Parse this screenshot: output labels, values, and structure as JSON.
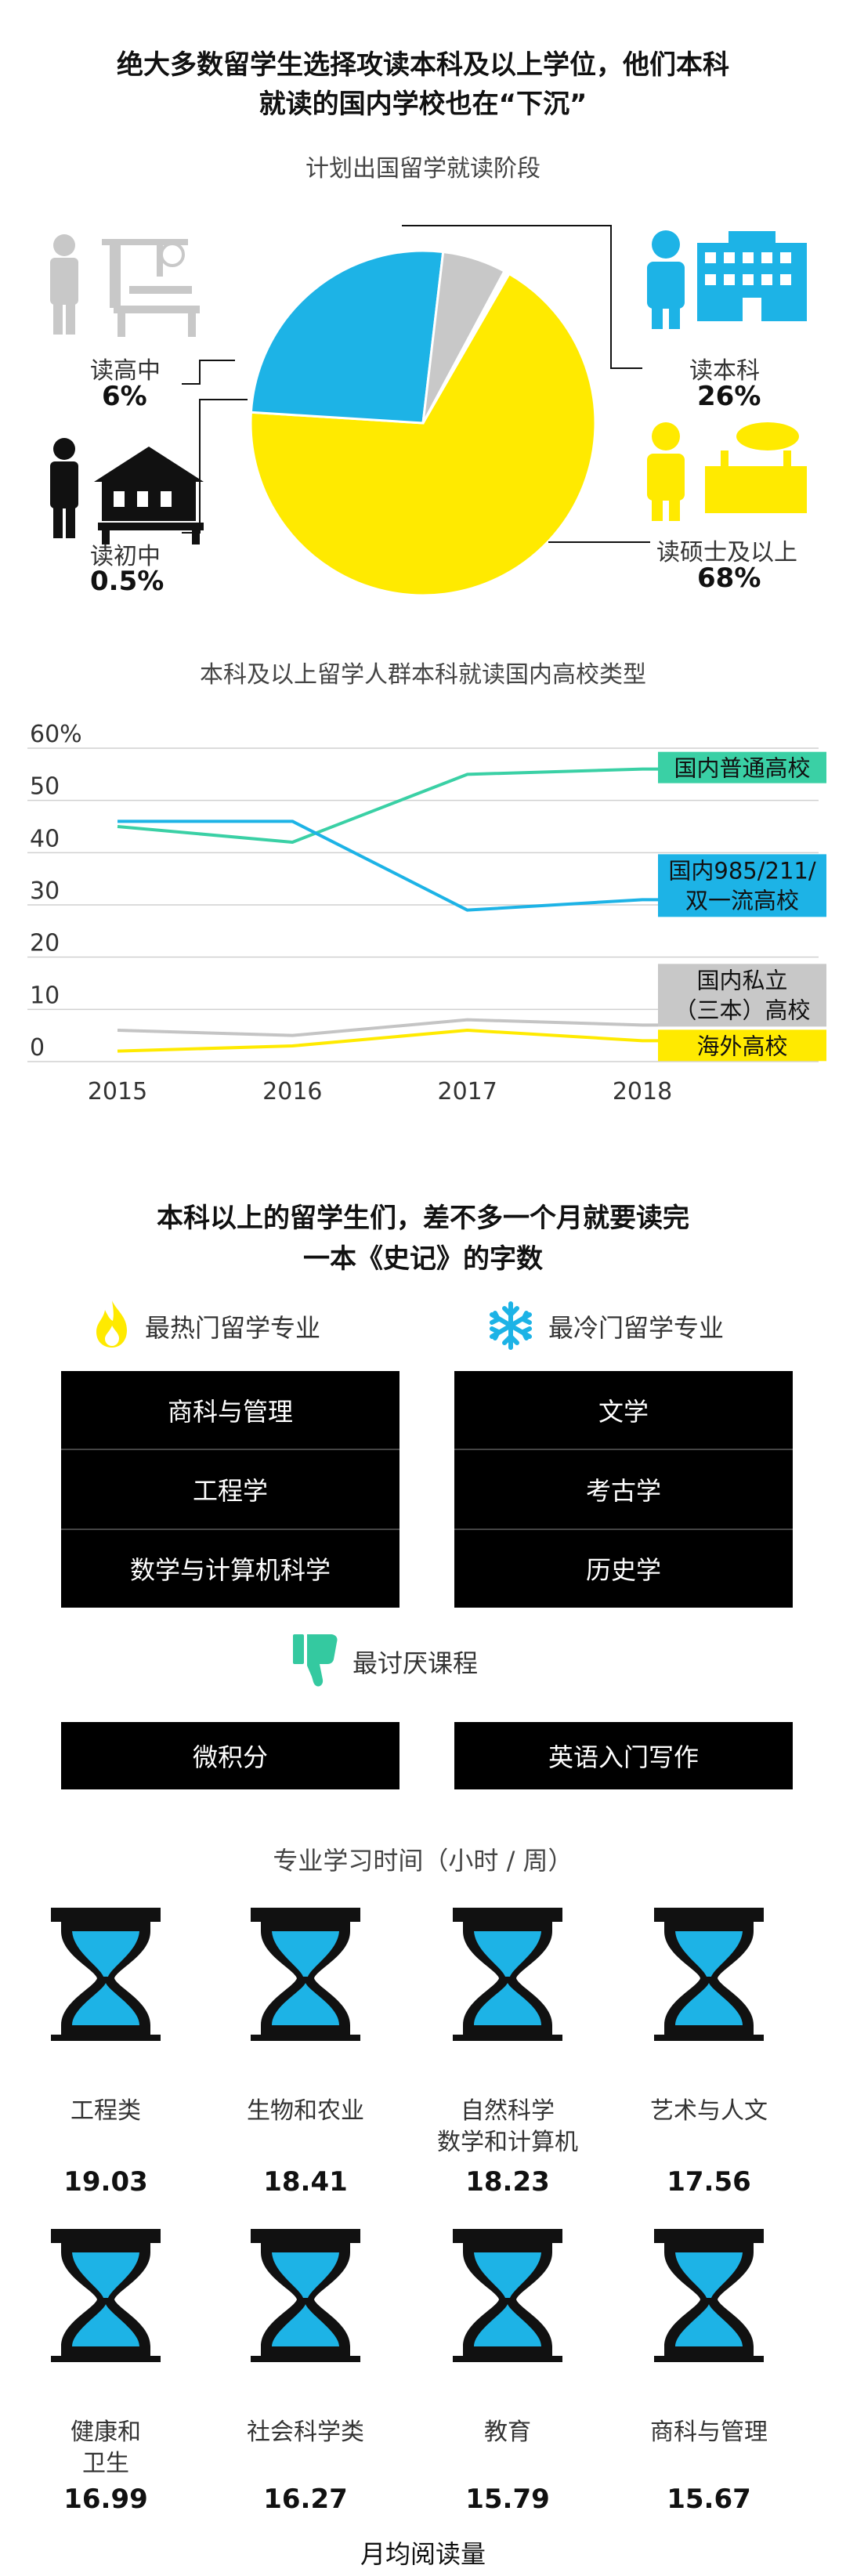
{
  "headline1": {
    "line1": "绝大多数留学生选择攻读本科及以上学位，他们本科",
    "line2": "就读的国内学校也在“下沉”"
  },
  "pie_title": "计划出国留学就读阶段",
  "pie_labels": [
    {
      "label": "读高中",
      "pct": "6%"
    },
    {
      "label": "读初中",
      "pct": "0.5%"
    },
    {
      "label": "读本科",
      "pct": "26%"
    },
    {
      "label": "读硕士及以上",
      "pct": "68%"
    }
  ],
  "line_title": "本科及以上留学人群本科就读国内高校类型",
  "headline2": {
    "line1": "本科以上的留学生们，差不多一个月就要读完",
    "line2": "一本《史记》的字数"
  },
  "hot": {
    "title": "最热门留学专业",
    "items": [
      "商科与管理",
      "工程学",
      "数学与计算机科学"
    ]
  },
  "cold": {
    "title": "最冷门留学专业",
    "items": [
      "文学",
      "考古学",
      "历史学"
    ]
  },
  "dislike": {
    "title": "最讨厌课程",
    "items": [
      "微积分",
      "英语入门写作"
    ]
  },
  "study_title": "专业学习时间（小时 / 周）",
  "study": [
    {
      "name1": "工程类",
      "name2": "",
      "value": "19.03"
    },
    {
      "name1": "生物和农业",
      "name2": "",
      "value": "18.41"
    },
    {
      "name1": "自然科学",
      "name2": "数学和计算机",
      "value": "18.23"
    },
    {
      "name1": "艺术与人文",
      "name2": "",
      "value": "17.56"
    },
    {
      "name1": "健康和",
      "name2": "卫生",
      "value": "16.99"
    },
    {
      "name1": "社会科学类",
      "name2": "",
      "value": "16.27"
    },
    {
      "name1": "教育",
      "name2": "",
      "value": "15.79"
    },
    {
      "name1": "商科与管理",
      "name2": "",
      "value": "15.67"
    }
  ],
  "footer_title": "月均阅读量",
  "colors": {
    "yellow": "#ffea00",
    "blue": "#1db3e6",
    "gray": "#c8c8c8",
    "green": "#34c9a0",
    "teal": "#3ad0a5"
  },
  "chart_data": [
    {
      "type": "pie",
      "title": "计划出国留学就读阶段",
      "labels": [
        "读硕士及以上",
        "读本科",
        "读高中",
        "读初中"
      ],
      "values": [
        68,
        26,
        6,
        0.5
      ],
      "colors": [
        "#ffea00",
        "#1db3e6",
        "#c8c8c8",
        "#ffffff"
      ]
    },
    {
      "type": "line",
      "title": "本科及以上留学人群本科就读国内高校类型",
      "x": [
        "2015",
        "2016",
        "2017",
        "2018"
      ],
      "ylim": [
        0,
        60
      ],
      "yticks": [
        "0",
        "10",
        "20",
        "30",
        "40",
        "50",
        "60%"
      ],
      "grid": true,
      "series": [
        {
          "name": "国内普通高校",
          "values": [
            45,
            42,
            55,
            56
          ],
          "color": "#3ad0a5",
          "label_color": "#3ad0a5"
        },
        {
          "name1": "国内985/211/",
          "name2": "双一流高校",
          "values": [
            46,
            46,
            29,
            31
          ],
          "color": "#1db3e6",
          "label_color": "#1db3e6"
        },
        {
          "name1": "国内私立",
          "name2": "（三本）高校",
          "values": [
            6,
            5,
            8,
            7
          ],
          "color": "#c4c4c4",
          "label_color": "#c8c8c8"
        },
        {
          "name": "海外高校",
          "values": [
            2,
            3,
            6,
            4
          ],
          "color": "#ffea00",
          "label_color": "#ffea00"
        }
      ]
    },
    {
      "type": "table",
      "title": "专业学习时间（小时 / 周）",
      "categories": [
        "工程类",
        "生物和农业",
        "自然科学 数学和计算机",
        "艺术与人文",
        "健康和 卫生",
        "社会科学类",
        "教育",
        "商科与管理"
      ],
      "values": [
        19.03,
        18.41,
        18.23,
        17.56,
        16.99,
        16.27,
        15.79,
        15.67
      ]
    }
  ]
}
